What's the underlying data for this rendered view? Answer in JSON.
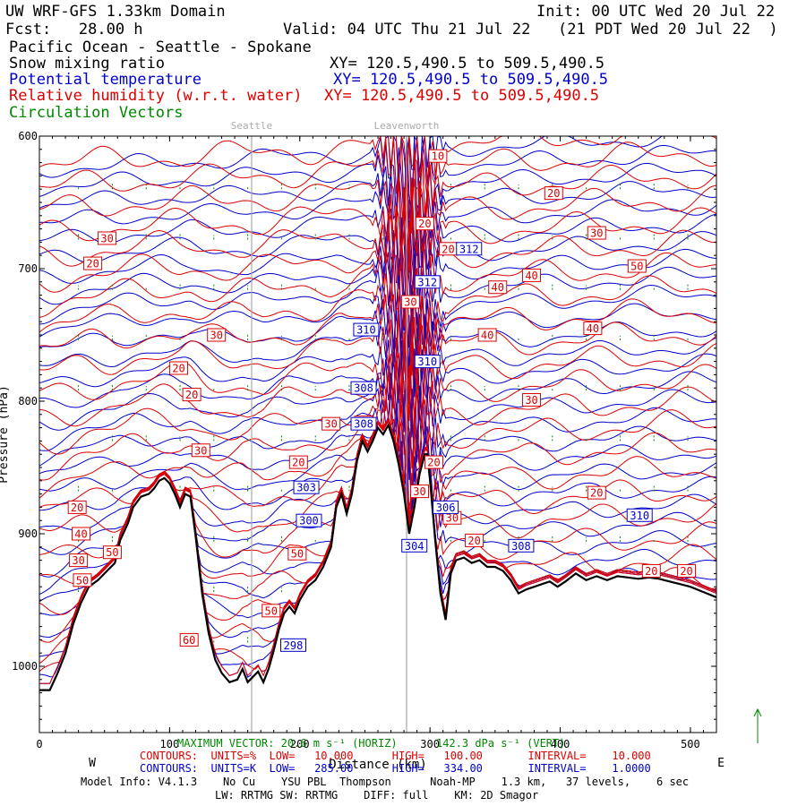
{
  "header": {
    "title": "UW WRF-GFS 1.33km Domain",
    "init": "Init: 00 UTC Wed 20 Jul 22",
    "fcst": "Fcst:   28.00 h",
    "valid": "Valid: 04 UTC Thu 21 Jul 22   (21 PDT Wed 20 Jul 22  )",
    "region": "Pacific Ocean - Seattle - Spokane",
    "fields": [
      {
        "label": "Snow mixing ratio",
        "xy": "XY= 120.5,490.5 to 509.5,490.5",
        "color": "#000000"
      },
      {
        "label": "Potential temperature",
        "xy": "XY= 120.5,490.5 to 509.5,490.5",
        "color": "#0000cc"
      },
      {
        "label": "Relative humidity (w.r.t. water)",
        "xy": "XY= 120.5,490.5 to 509.5,490.5",
        "color": "#dd0000"
      },
      {
        "label": "Circulation Vectors",
        "xy": "",
        "color": "#008800"
      }
    ]
  },
  "chart_data": {
    "type": "line",
    "title": "Pacific Ocean - Seattle - Spokane",
    "xlabel": "Distance (km)",
    "ylabel": "Pressure (hPa)",
    "xlim": [
      0,
      520
    ],
    "ylim": [
      1050,
      600
    ],
    "x_ticks": [
      "0",
      "100",
      "200",
      "300",
      "400",
      "500"
    ],
    "y_ticks": [
      "600",
      "700",
      "800",
      "900",
      "1000"
    ],
    "x_ends": {
      "left": "W",
      "right": "E"
    },
    "locations": [
      {
        "name": "Seattle",
        "x": 163
      },
      {
        "name": "Leavenworth",
        "x": 282
      }
    ],
    "terrain": [
      [
        0,
        1018
      ],
      [
        8,
        1018
      ],
      [
        14,
        1005
      ],
      [
        20,
        990
      ],
      [
        26,
        968
      ],
      [
        32,
        952
      ],
      [
        38,
        940
      ],
      [
        45,
        935
      ],
      [
        52,
        928
      ],
      [
        58,
        922
      ],
      [
        62,
        905
      ],
      [
        68,
        892
      ],
      [
        72,
        880
      ],
      [
        78,
        872
      ],
      [
        84,
        870
      ],
      [
        88,
        866
      ],
      [
        92,
        860
      ],
      [
        96,
        858
      ],
      [
        100,
        862
      ],
      [
        104,
        870
      ],
      [
        108,
        880
      ],
      [
        112,
        870
      ],
      [
        116,
        872
      ],
      [
        120,
        902
      ],
      [
        125,
        945
      ],
      [
        130,
        975
      ],
      [
        135,
        995
      ],
      [
        140,
        1005
      ],
      [
        146,
        1012
      ],
      [
        152,
        1010
      ],
      [
        156,
        1002
      ],
      [
        160,
        1012
      ],
      [
        164,
        1008
      ],
      [
        168,
        1004
      ],
      [
        172,
        1012
      ],
      [
        176,
        1002
      ],
      [
        180,
        988
      ],
      [
        184,
        972
      ],
      [
        188,
        960
      ],
      [
        192,
        955
      ],
      [
        196,
        960
      ],
      [
        200,
        950
      ],
      [
        206,
        940
      ],
      [
        212,
        935
      ],
      [
        218,
        925
      ],
      [
        224,
        910
      ],
      [
        228,
        880
      ],
      [
        232,
        870
      ],
      [
        236,
        885
      ],
      [
        240,
        870
      ],
      [
        244,
        845
      ],
      [
        248,
        830
      ],
      [
        252,
        838
      ],
      [
        256,
        830
      ],
      [
        260,
        820
      ],
      [
        264,
        825
      ],
      [
        268,
        818
      ],
      [
        272,
        830
      ],
      [
        276,
        848
      ],
      [
        280,
        870
      ],
      [
        284,
        900
      ],
      [
        288,
        880
      ],
      [
        292,
        855
      ],
      [
        296,
        840
      ],
      [
        298,
        840
      ],
      [
        300,
        860
      ],
      [
        304,
        905
      ],
      [
        308,
        945
      ],
      [
        312,
        965
      ],
      [
        316,
        930
      ],
      [
        320,
        920
      ],
      [
        326,
        918
      ],
      [
        332,
        922
      ],
      [
        338,
        920
      ],
      [
        344,
        925
      ],
      [
        350,
        925
      ],
      [
        356,
        928
      ],
      [
        362,
        935
      ],
      [
        368,
        945
      ],
      [
        374,
        942
      ],
      [
        380,
        940
      ],
      [
        386,
        938
      ],
      [
        392,
        936
      ],
      [
        398,
        940
      ],
      [
        404,
        936
      ],
      [
        412,
        930
      ],
      [
        420,
        935
      ],
      [
        428,
        932
      ],
      [
        436,
        935
      ],
      [
        444,
        932
      ],
      [
        452,
        933
      ],
      [
        460,
        934
      ],
      [
        468,
        933
      ],
      [
        476,
        934
      ],
      [
        484,
        936
      ],
      [
        492,
        938
      ],
      [
        500,
        940
      ],
      [
        510,
        944
      ],
      [
        520,
        948
      ]
    ],
    "theta_labels": [
      {
        "value": "312",
        "x": 330,
        "p": 685
      },
      {
        "value": "312",
        "x": 298,
        "p": 710
      },
      {
        "value": "310",
        "x": 251,
        "p": 746
      },
      {
        "value": "310",
        "x": 298,
        "p": 770
      },
      {
        "value": "308",
        "x": 249,
        "p": 790
      },
      {
        "value": "308",
        "x": 249,
        "p": 817
      },
      {
        "value": "310",
        "x": 461,
        "p": 886
      },
      {
        "value": "308",
        "x": 370,
        "p": 909
      },
      {
        "value": "306",
        "x": 312,
        "p": 880
      },
      {
        "value": "304",
        "x": 288,
        "p": 909
      },
      {
        "value": "303",
        "x": 205,
        "p": 865
      },
      {
        "value": "300",
        "x": 207,
        "p": 890
      },
      {
        "value": "298",
        "x": 195,
        "p": 984
      }
    ],
    "rh_labels": [
      {
        "value": "10",
        "x": 306,
        "p": 615
      },
      {
        "value": "20",
        "x": 395,
        "p": 643
      },
      {
        "value": "20",
        "x": 296,
        "p": 666
      },
      {
        "value": "30",
        "x": 428,
        "p": 673
      },
      {
        "value": "20",
        "x": 314,
        "p": 685
      },
      {
        "value": "30",
        "x": 52,
        "p": 677
      },
      {
        "value": "20",
        "x": 41,
        "p": 696
      },
      {
        "value": "40",
        "x": 378,
        "p": 705
      },
      {
        "value": "50",
        "x": 459,
        "p": 698
      },
      {
        "value": "40",
        "x": 352,
        "p": 714
      },
      {
        "value": "30",
        "x": 285,
        "p": 725
      },
      {
        "value": "40",
        "x": 425,
        "p": 745
      },
      {
        "value": "40",
        "x": 344,
        "p": 750
      },
      {
        "value": "30",
        "x": 136,
        "p": 750
      },
      {
        "value": "20",
        "x": 107,
        "p": 775
      },
      {
        "value": "20",
        "x": 117,
        "p": 795
      },
      {
        "value": "30",
        "x": 378,
        "p": 799
      },
      {
        "value": "30",
        "x": 224,
        "p": 817
      },
      {
        "value": "20",
        "x": 249,
        "p": 816
      },
      {
        "value": "30",
        "x": 124,
        "p": 837
      },
      {
        "value": "20",
        "x": 199,
        "p": 846
      },
      {
        "value": "20",
        "x": 303,
        "p": 846
      },
      {
        "value": "30",
        "x": 292,
        "p": 868
      },
      {
        "value": "20",
        "x": 428,
        "p": 869
      },
      {
        "value": "20",
        "x": 29,
        "p": 880
      },
      {
        "value": "30",
        "x": 317,
        "p": 888
      },
      {
        "value": "40",
        "x": 32,
        "p": 900
      },
      {
        "value": "20",
        "x": 334,
        "p": 905
      },
      {
        "value": "50",
        "x": 56,
        "p": 914
      },
      {
        "value": "30",
        "x": 30,
        "p": 920
      },
      {
        "value": "50",
        "x": 198,
        "p": 915
      },
      {
        "value": "20",
        "x": 470,
        "p": 928
      },
      {
        "value": "20",
        "x": 497,
        "p": 928
      },
      {
        "value": "50",
        "x": 33,
        "p": 935
      },
      {
        "value": "50",
        "x": 178,
        "p": 958
      },
      {
        "value": "60",
        "x": 115,
        "p": 980
      }
    ]
  },
  "footer": {
    "max_vector": "MAXIMUM VECTOR: 20.6 m s⁻¹ (HORIZ)      142.3 dPa s⁻¹ (VERT)",
    "rh_contours": "CONTOURS:  UNITS=%  LOW=   10.000      HIGH=   100.00       INTERVAL=    10.000",
    "theta_contours": "CONTOURS:  UNITS=K  LOW=   285.00      HIGH=   334.00       INTERVAL=    1.0000",
    "model_info": "Model Info: V4.1.3    No Cu    YSU PBL  Thompson      Noah-MP    1.3 km,   37 levels,    6 sec",
    "physics": "LW: RRTMG SW: RRTMG    DIFF: full    KM: 2D Smagor"
  }
}
